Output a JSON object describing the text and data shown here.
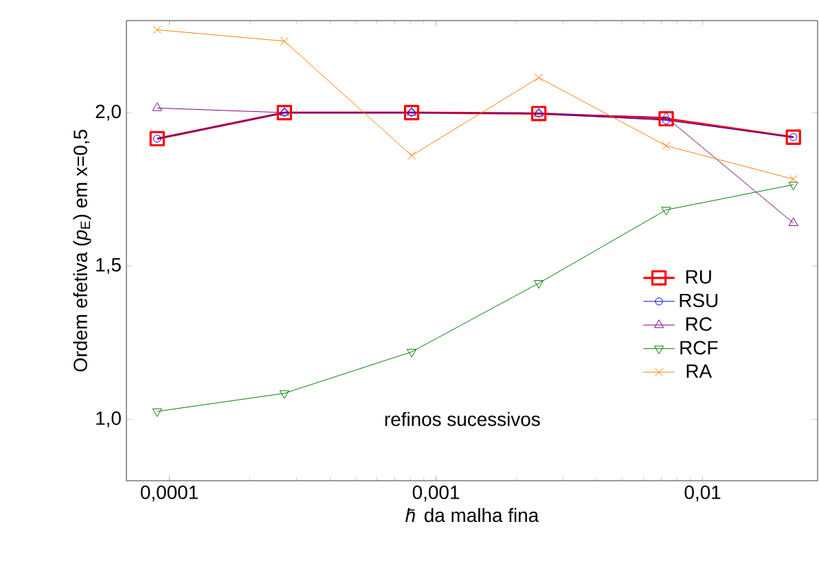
{
  "chart_data": {
    "type": "line",
    "xlabel": "*h̄* da malha fina",
    "ylabel": "Ordem efetiva (*p*$_{E}$) em x=0,5",
    "annotations": [
      "refinos sucessivos"
    ],
    "x": [
      9e-05,
      0.00027,
      0.00081,
      0.00243,
      0.0073,
      0.0219
    ],
    "log": "x",
    "xlim": [
      6.9e-05,
      0.027
    ],
    "ylim": [
      0.8,
      2.3
    ],
    "xticks": [
      {
        "value": 0.0001,
        "label": "0,0001"
      },
      {
        "value": 0.001,
        "label": "0,001"
      },
      {
        "value": 0.01,
        "label": "0,01"
      }
    ],
    "yticks": [
      {
        "value": 1.0,
        "label": "1,0"
      },
      {
        "value": 1.5,
        "label": "1,5"
      },
      {
        "value": 2.0,
        "label": "2,0"
      }
    ],
    "legend": "bottom right",
    "series": [
      {
        "name": "RU",
        "color": "#ff0000",
        "marker": "square",
        "values": [
          1.915,
          2.0,
          2.0,
          1.997,
          1.98,
          1.92
        ]
      },
      {
        "name": "RSU",
        "color": "#0000ff",
        "marker": "circle",
        "values": [
          1.915,
          2.0,
          2.0,
          1.997,
          1.975,
          1.92
        ]
      },
      {
        "name": "RC",
        "color": "#800080",
        "marker": "triangle",
        "values": [
          2.015,
          2.0,
          2.0,
          1.997,
          1.985,
          1.64
        ]
      },
      {
        "name": "RCF",
        "color": "#008000",
        "marker": "triangle-down",
        "values": [
          1.026,
          1.085,
          1.22,
          1.444,
          1.683,
          1.765
        ]
      },
      {
        "name": "RA",
        "color": "#ff8000",
        "marker": "cross",
        "values": [
          2.27,
          2.233,
          1.86,
          2.114,
          1.892,
          1.783
        ]
      }
    ]
  }
}
